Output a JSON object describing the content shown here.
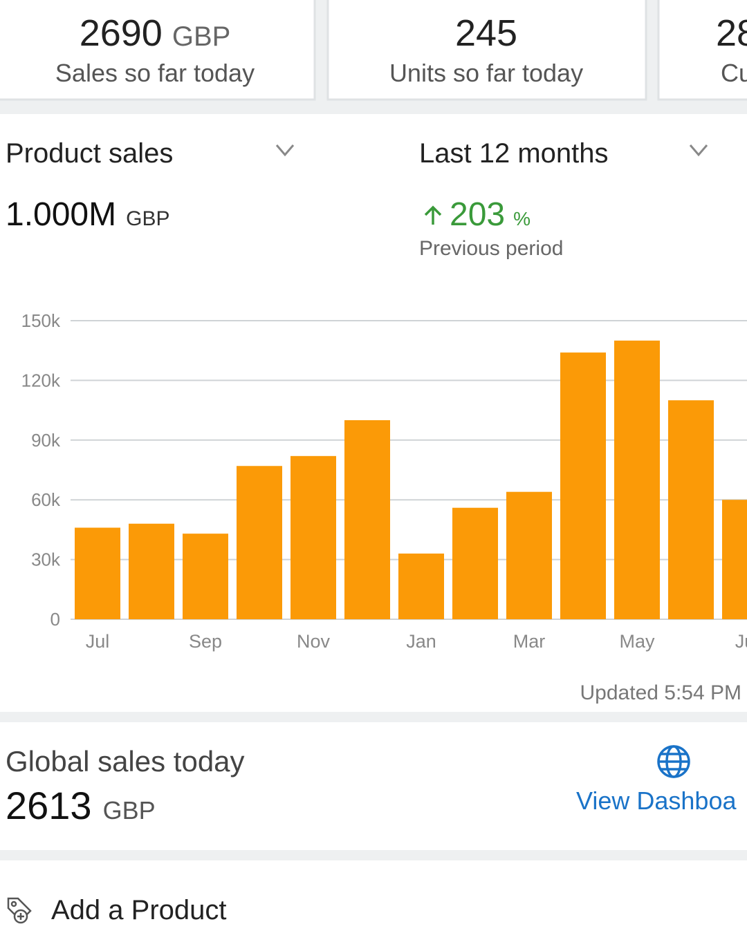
{
  "summary_cards": [
    {
      "value": 2690,
      "unit": "GBP",
      "label": "Sales so far today"
    },
    {
      "value": 245,
      "label": "Units so far today"
    },
    {
      "value": 28,
      "label": "Cu"
    }
  ],
  "metric_selector": "Product sales",
  "period_selector": "Last 12 months",
  "total": {
    "value": "1.000M",
    "unit": "GBP"
  },
  "change": {
    "value": 203,
    "unit": "%",
    "label": "Previous period"
  },
  "chart_data": {
    "type": "bar",
    "color": "#fb9a07",
    "grid": true,
    "categories": [
      "Jul",
      null,
      "Sep",
      null,
      "Nov",
      null,
      "Jan",
      null,
      "Mar",
      null,
      "May",
      null,
      "Ju"
    ],
    "values": [
      46000,
      48000,
      43000,
      77000,
      82000,
      100000,
      33000,
      56000,
      64000,
      134000,
      140000,
      110000,
      60000
    ],
    "ylim": [
      0,
      150000
    ],
    "yticks": [
      0,
      {
        "value": 30000,
        "label": "30k"
      },
      {
        "value": 60000,
        "label": "60k"
      },
      {
        "value": 90000,
        "label": "90k"
      },
      {
        "value": 120000,
        "label": "120k"
      },
      {
        "value": 150000,
        "label": "150k"
      }
    ]
  },
  "updated": "Updated 5:54 PM",
  "global_sales": {
    "label": "Global sales today",
    "value": 2613,
    "unit": "GBP",
    "link": "View Dashboa"
  },
  "action": "Add a Product"
}
